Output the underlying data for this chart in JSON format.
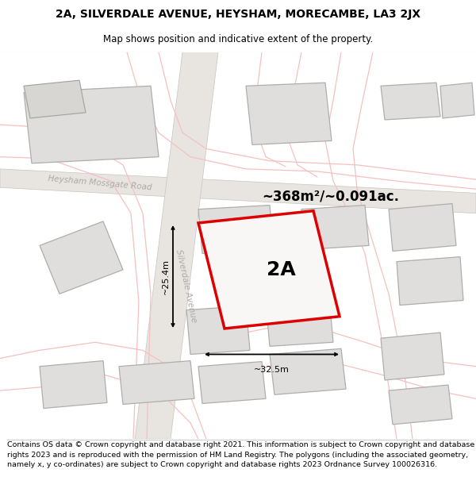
{
  "title_line1": "2A, SILVERDALE AVENUE, HEYSHAM, MORECAMBE, LA3 2JX",
  "title_line2": "Map shows position and indicative extent of the property.",
  "footer_text": "Contains OS data © Crown copyright and database right 2021. This information is subject to Crown copyright and database rights 2023 and is reproduced with the permission of HM Land Registry. The polygons (including the associated geometry, namely x, y co-ordinates) are subject to Crown copyright and database rights 2023 Ordnance Survey 100026316.",
  "area_label": "~368m²/~0.091ac.",
  "property_label": "2A",
  "width_label": "~32.5m",
  "height_label": "~25.4m",
  "road_label_mossgate": "Heysham Mossgate Road",
  "road_label_silverdale": "Silverdale Avenue",
  "map_bg": "#f7f5f3",
  "property_fill": "#f0eeeb",
  "property_outline_color": "#dd0000",
  "building_fill": "#e0dedd",
  "building_stroke": "#b0aeac",
  "road_outline_color": "#c8c4c0",
  "road_label_color": "#aaaaaa",
  "pink_road_color": "#f5c0c0",
  "title_fontsize": 10,
  "subtitle_fontsize": 8.5,
  "footer_fontsize": 6.8,
  "area_fontsize": 12,
  "label_fontsize": 18,
  "road_fontsize": 7.5,
  "dim_fontsize": 8
}
